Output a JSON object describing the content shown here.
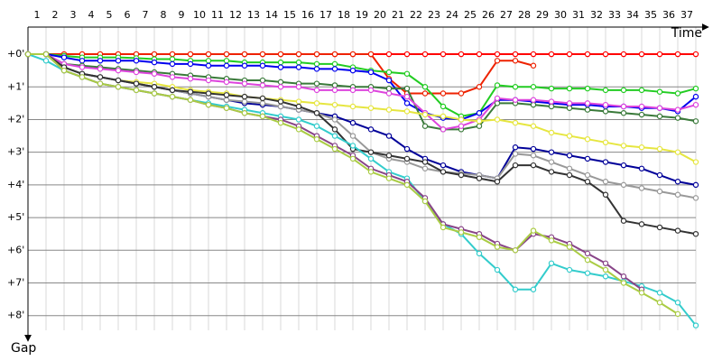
{
  "chart_data": {
    "type": "line",
    "x_label": "Time",
    "y_label": "Gap",
    "x": [
      0,
      1,
      2,
      3,
      4,
      5,
      6,
      7,
      8,
      9,
      10,
      11,
      12,
      13,
      14,
      15,
      16,
      17,
      18,
      19,
      20,
      21,
      22,
      23,
      24,
      25,
      26,
      27,
      28,
      29,
      30,
      31,
      32,
      33,
      34,
      35,
      36,
      37
    ],
    "xlim": [
      0,
      37
    ],
    "xticks": [
      {
        "value": 0.5,
        "label": "1"
      },
      {
        "value": 1.5,
        "label": "2"
      },
      {
        "value": 2.5,
        "label": "3"
      },
      {
        "value": 3.5,
        "label": "4"
      },
      {
        "value": 4.5,
        "label": "5"
      },
      {
        "value": 5.5,
        "label": "6"
      },
      {
        "value": 6.5,
        "label": "7"
      },
      {
        "value": 7.5,
        "label": "8"
      },
      {
        "value": 8.5,
        "label": "9"
      },
      {
        "value": 9.5,
        "label": "10"
      },
      {
        "value": 10.5,
        "label": "11"
      },
      {
        "value": 11.5,
        "label": "12"
      },
      {
        "value": 12.5,
        "label": "13"
      },
      {
        "value": 13.5,
        "label": "14"
      },
      {
        "value": 14.5,
        "label": "15"
      },
      {
        "value": 15.5,
        "label": "16"
      },
      {
        "value": 16.5,
        "label": "17"
      },
      {
        "value": 17.5,
        "label": "18"
      },
      {
        "value": 18.5,
        "label": "19"
      },
      {
        "value": 19.5,
        "label": "20"
      },
      {
        "value": 20.5,
        "label": "21"
      },
      {
        "value": 21.5,
        "label": "22"
      },
      {
        "value": 22.5,
        "label": "23"
      },
      {
        "value": 23.5,
        "label": "24"
      },
      {
        "value": 24.5,
        "label": "25"
      },
      {
        "value": 25.5,
        "label": "26"
      },
      {
        "value": 26.5,
        "label": "27"
      },
      {
        "value": 27.5,
        "label": "28"
      },
      {
        "value": 28.5,
        "label": "29"
      },
      {
        "value": 29.5,
        "label": "30"
      },
      {
        "value": 30.5,
        "label": "31"
      },
      {
        "value": 31.5,
        "label": "32"
      },
      {
        "value": 32.5,
        "label": "33"
      },
      {
        "value": 33.5,
        "label": "34"
      },
      {
        "value": 34.5,
        "label": "35"
      },
      {
        "value": 35.5,
        "label": "36"
      },
      {
        "value": 36.5,
        "label": "37"
      }
    ],
    "ylim": [
      -0.83,
      8.45
    ],
    "yticks": [
      {
        "value": 0,
        "label": "+0'"
      },
      {
        "value": 1,
        "label": "+1'"
      },
      {
        "value": 2,
        "label": "+2'"
      },
      {
        "value": 3,
        "label": "+3'"
      },
      {
        "value": 4,
        "label": "+4'"
      },
      {
        "value": 5,
        "label": "+5'"
      },
      {
        "value": 6,
        "label": "+6'"
      },
      {
        "value": 7,
        "label": "+7'"
      },
      {
        "value": 8,
        "label": "+8'"
      }
    ],
    "y_inverted": true,
    "grid": true,
    "series": [
      {
        "color": "#ff0000",
        "values": [
          0,
          0,
          0,
          0,
          0,
          0,
          0,
          0,
          0,
          0,
          0,
          0,
          0,
          0,
          0,
          0,
          0,
          0,
          0,
          0,
          0,
          0,
          0,
          0,
          0,
          0,
          0,
          0,
          0,
          0,
          0,
          0,
          0,
          0,
          0,
          0,
          0,
          0
        ]
      },
      {
        "color": "#ee2200",
        "values": [
          0,
          0,
          0,
          0,
          0,
          0,
          0,
          0,
          0,
          0,
          0,
          0,
          0,
          0,
          0,
          0,
          0,
          0,
          0,
          0,
          0.75,
          1.2,
          1.2,
          1.2,
          1.2,
          1.0,
          0.2,
          0.2,
          0.35,
          null,
          null,
          null,
          null,
          null,
          null,
          null,
          null,
          null
        ]
      },
      {
        "color": "#22cc22",
        "values": [
          0,
          0,
          0.05,
          0.1,
          0.1,
          0.1,
          0.12,
          0.15,
          0.15,
          0.2,
          0.2,
          0.2,
          0.25,
          0.25,
          0.25,
          0.25,
          0.3,
          0.3,
          0.4,
          0.5,
          0.55,
          0.6,
          1.0,
          1.6,
          1.9,
          1.8,
          0.95,
          1.0,
          1.0,
          1.05,
          1.05,
          1.05,
          1.1,
          1.1,
          1.1,
          1.15,
          1.2,
          1.05
        ]
      },
      {
        "color": "#0000ee",
        "values": [
          0,
          0,
          0.1,
          0.2,
          0.2,
          0.2,
          0.2,
          0.25,
          0.3,
          0.3,
          0.35,
          0.35,
          0.35,
          0.35,
          0.4,
          0.4,
          0.45,
          0.45,
          0.5,
          0.55,
          0.8,
          1.5,
          1.8,
          1.95,
          2.0,
          1.8,
          1.4,
          1.4,
          1.45,
          1.5,
          1.55,
          1.55,
          1.6,
          1.6,
          1.65,
          1.65,
          1.75,
          1.3
        ]
      },
      {
        "color": "#3a7a3a",
        "values": [
          0,
          0,
          0.3,
          0.35,
          0.4,
          0.45,
          0.5,
          0.55,
          0.6,
          0.65,
          0.7,
          0.75,
          0.8,
          0.8,
          0.85,
          0.9,
          0.9,
          0.95,
          1.0,
          1.0,
          1.05,
          1.05,
          2.2,
          2.3,
          2.3,
          2.2,
          1.5,
          1.5,
          1.55,
          1.6,
          1.65,
          1.7,
          1.75,
          1.8,
          1.85,
          1.9,
          1.95,
          2.05
        ]
      },
      {
        "color": "#dd44dd",
        "values": [
          0,
          0,
          0.3,
          0.4,
          0.45,
          0.5,
          0.55,
          0.6,
          0.7,
          0.75,
          0.8,
          0.85,
          0.9,
          0.95,
          1.0,
          1.0,
          1.1,
          1.1,
          1.1,
          1.1,
          1.2,
          1.3,
          1.8,
          2.3,
          2.2,
          2.0,
          1.35,
          1.4,
          1.4,
          1.45,
          1.5,
          1.5,
          1.55,
          1.6,
          1.6,
          1.65,
          1.7,
          1.55
        ]
      },
      {
        "color": "#e6e640",
        "values": [
          0,
          0,
          0.4,
          0.6,
          0.7,
          0.8,
          0.85,
          0.9,
          1.0,
          1.1,
          1.15,
          1.2,
          1.3,
          1.35,
          1.4,
          1.45,
          1.5,
          1.55,
          1.6,
          1.65,
          1.7,
          1.75,
          1.85,
          1.9,
          2.0,
          2.05,
          2.0,
          2.1,
          2.2,
          2.4,
          2.5,
          2.6,
          2.7,
          2.8,
          2.85,
          2.9,
          3.0,
          3.3
        ]
      },
      {
        "color": "#000099",
        "values": [
          0,
          0,
          0.4,
          0.6,
          0.7,
          0.8,
          0.9,
          1.0,
          1.1,
          1.2,
          1.3,
          1.4,
          1.5,
          1.55,
          1.6,
          1.7,
          1.8,
          1.9,
          2.1,
          2.3,
          2.5,
          2.9,
          3.2,
          3.4,
          3.6,
          3.7,
          3.8,
          2.85,
          2.9,
          3.0,
          3.1,
          3.2,
          3.3,
          3.4,
          3.5,
          3.7,
          3.9,
          4.0
        ]
      },
      {
        "color": "#999999",
        "values": [
          0,
          0,
          0.4,
          0.6,
          0.7,
          0.8,
          0.9,
          1.0,
          1.1,
          1.2,
          1.3,
          1.4,
          1.45,
          1.5,
          1.6,
          1.7,
          1.8,
          2.0,
          2.5,
          3.0,
          3.2,
          3.3,
          3.5,
          3.6,
          3.65,
          3.7,
          3.8,
          3.05,
          3.1,
          3.3,
          3.5,
          3.7,
          3.9,
          4.0,
          4.1,
          4.2,
          4.3,
          4.4
        ]
      },
      {
        "color": "#333333",
        "values": [
          0,
          0,
          0.4,
          0.6,
          0.7,
          0.8,
          0.9,
          1.0,
          1.1,
          1.15,
          1.2,
          1.25,
          1.3,
          1.35,
          1.45,
          1.6,
          1.8,
          2.3,
          2.9,
          3.0,
          3.1,
          3.2,
          3.3,
          3.6,
          3.7,
          3.8,
          3.9,
          3.4,
          3.4,
          3.6,
          3.7,
          3.9,
          4.3,
          5.1,
          5.2,
          5.3,
          5.4,
          5.5
        ]
      },
      {
        "color": "#33cccc",
        "values": [
          0,
          0.2,
          0.5,
          0.7,
          0.9,
          1.0,
          1.1,
          1.2,
          1.3,
          1.4,
          1.5,
          1.6,
          1.7,
          1.8,
          1.9,
          2.0,
          2.2,
          2.5,
          2.8,
          3.2,
          3.6,
          3.8,
          4.5,
          5.2,
          5.5,
          6.1,
          6.6,
          7.2,
          7.2,
          6.4,
          6.6,
          6.7,
          6.8,
          6.95,
          7.1,
          7.3,
          7.6,
          8.3
        ]
      },
      {
        "color": "#884488",
        "values": [
          0,
          0,
          0.5,
          0.7,
          0.9,
          1.0,
          1.1,
          1.2,
          1.3,
          1.4,
          1.55,
          1.65,
          1.8,
          1.9,
          2.0,
          2.2,
          2.5,
          2.8,
          3.1,
          3.5,
          3.7,
          3.9,
          4.4,
          5.2,
          5.35,
          5.5,
          5.8,
          6.0,
          5.5,
          5.6,
          5.8,
          6.1,
          6.4,
          6.8,
          7.2,
          null,
          null,
          null
        ]
      },
      {
        "color": "#aacc44",
        "values": [
          0,
          0,
          0.5,
          0.7,
          0.9,
          1.0,
          1.1,
          1.2,
          1.3,
          1.4,
          1.55,
          1.65,
          1.8,
          1.9,
          2.1,
          2.3,
          2.6,
          2.9,
          3.2,
          3.6,
          3.8,
          4.0,
          4.5,
          5.3,
          5.45,
          5.6,
          5.9,
          6.0,
          5.4,
          5.7,
          5.9,
          6.3,
          6.6,
          7.0,
          7.3,
          7.6,
          7.95,
          null
        ]
      }
    ]
  }
}
